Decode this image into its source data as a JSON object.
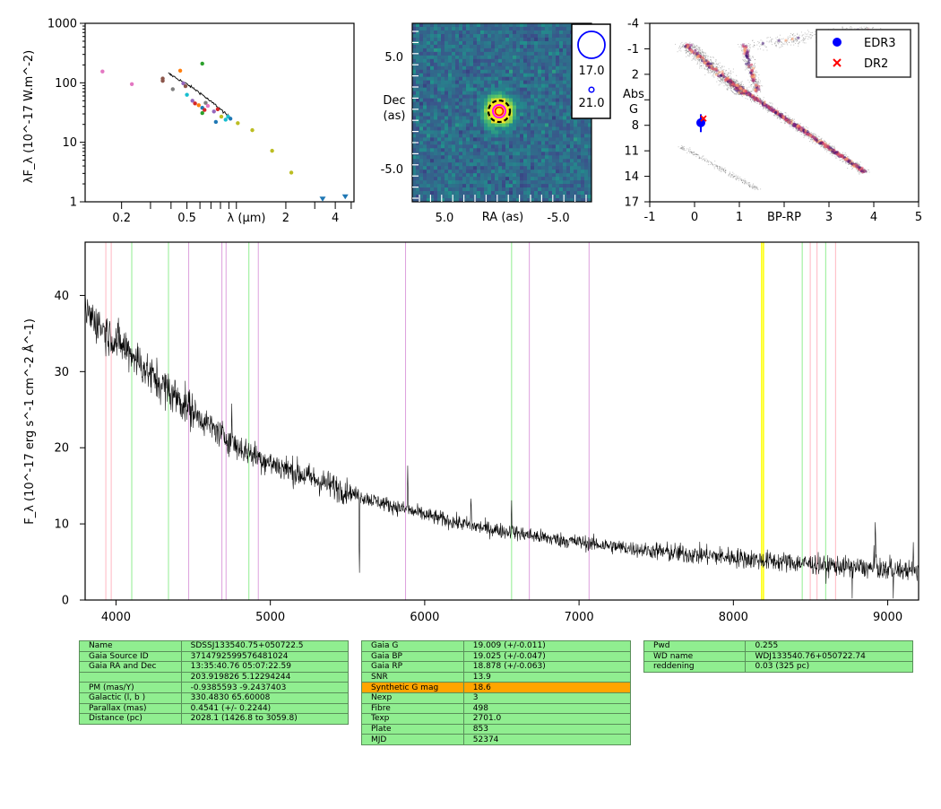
{
  "chart_data": [
    {
      "type": "scatter",
      "panel": "sed",
      "ylabel": "λF_λ (10^-17 W.m^-2)",
      "xlabel": "λ (μm)",
      "xscale": "log",
      "yscale": "log",
      "xlim": [
        0.12,
        5.2
      ],
      "ylim": [
        1,
        1000
      ],
      "x_ticks": [
        "0.2",
        "0.5",
        "2",
        "4"
      ],
      "y_ticks": [
        "1",
        "10",
        "100",
        "1000"
      ],
      "points": [
        {
          "x": 0.153,
          "y": 155,
          "color": "#e377c2"
        },
        {
          "x": 0.231,
          "y": 95,
          "color": "#e377c2"
        },
        {
          "x": 0.356,
          "y": 118,
          "color": "#8c564b"
        },
        {
          "x": 0.356,
          "y": 108,
          "color": "#8c564b"
        },
        {
          "x": 0.41,
          "y": 78,
          "color": "#7f7f7f"
        },
        {
          "x": 0.455,
          "y": 160,
          "color": "#ff7f0e"
        },
        {
          "x": 0.475,
          "y": 98,
          "color": "#9467bd"
        },
        {
          "x": 0.49,
          "y": 88,
          "color": "#8c564b"
        },
        {
          "x": 0.5,
          "y": 63,
          "color": "#17becf"
        },
        {
          "x": 0.54,
          "y": 50,
          "color": "#9467bd"
        },
        {
          "x": 0.56,
          "y": 45,
          "color": "#d62728"
        },
        {
          "x": 0.59,
          "y": 42,
          "color": "#ff7f0e"
        },
        {
          "x": 0.62,
          "y": 210,
          "color": "#2ca02c"
        },
        {
          "x": 0.62,
          "y": 38,
          "color": "#1f77b4"
        },
        {
          "x": 0.62,
          "y": 31,
          "color": "#2ca02c"
        },
        {
          "x": 0.64,
          "y": 35,
          "color": "#d62728"
        },
        {
          "x": 0.65,
          "y": 46,
          "color": "#7f7f7f"
        },
        {
          "x": 0.67,
          "y": 41,
          "color": "#e377c2"
        },
        {
          "x": 0.73,
          "y": 33,
          "color": "#9467bd"
        },
        {
          "x": 0.75,
          "y": 22,
          "color": "#1f77b4"
        },
        {
          "x": 0.77,
          "y": 36,
          "color": "#d62728"
        },
        {
          "x": 0.81,
          "y": 27,
          "color": "#bcbd22"
        },
        {
          "x": 0.86,
          "y": 24,
          "color": "#17becf"
        },
        {
          "x": 0.89,
          "y": 27,
          "color": "#17becf"
        },
        {
          "x": 0.92,
          "y": 25,
          "color": "#1f77b4"
        },
        {
          "x": 1.02,
          "y": 21,
          "color": "#bcbd22"
        },
        {
          "x": 1.25,
          "y": 16,
          "color": "#bcbd22"
        },
        {
          "x": 1.65,
          "y": 7.2,
          "color": "#bcbd22"
        },
        {
          "x": 2.16,
          "y": 3.1,
          "color": "#bcbd22"
        }
      ],
      "upper_limits": [
        {
          "x": 3.35,
          "y": 1.1,
          "color": "#1f77b4"
        },
        {
          "x": 4.6,
          "y": 1.2,
          "color": "#1f77b4"
        }
      ],
      "spectrum_line": [
        [
          0.385,
          145
        ],
        [
          0.41,
          130
        ],
        [
          0.45,
          112
        ],
        [
          0.5,
          95
        ],
        [
          0.55,
          80
        ],
        [
          0.6,
          68
        ],
        [
          0.65,
          57
        ],
        [
          0.7,
          48
        ],
        [
          0.75,
          42
        ],
        [
          0.8,
          36
        ],
        [
          0.85,
          31
        ],
        [
          0.9,
          27
        ],
        [
          0.92,
          26
        ]
      ]
    },
    {
      "type": "heatmap",
      "panel": "image",
      "xlabel": "RA (as)",
      "ylabel": "Dec\n(as)",
      "xlim": [
        10,
        -10
      ],
      "ylim": [
        -10,
        10
      ],
      "x_ticks": [
        "5.0",
        "-5.0"
      ],
      "y_ticks": [
        "5.0",
        "-5.0"
      ],
      "legend": [
        "17.0",
        "21.0"
      ],
      "legend_colors": [
        "#0000ff",
        "#0000ff"
      ]
    },
    {
      "type": "scatter",
      "panel": "hr_diagram",
      "xlabel": "BP-RP",
      "ylabel": "Abs\nG",
      "xlim": [
        -1,
        5
      ],
      "ylim": [
        17,
        -4
      ],
      "x_ticks": [
        "-1",
        "0",
        "1",
        "BP-RP",
        "3",
        "4",
        "5"
      ],
      "y_ticks": [
        "-4",
        "-1",
        "2",
        "",
        "8",
        "11",
        "14",
        "17"
      ],
      "series": [
        {
          "name": "EDR3",
          "color": "#0000ff",
          "marker": "circle",
          "x": 0.14,
          "y": 7.7
        },
        {
          "name": "DR2",
          "color": "#ff0000",
          "marker": "x",
          "x": 0.2,
          "y": 7.2
        }
      ]
    },
    {
      "type": "line",
      "panel": "spectrum",
      "ylabel": "F_λ (10^-17 erg s^-1 cm^-2 Å^-1)",
      "xlim": [
        3800,
        9200
      ],
      "ylim": [
        0,
        47
      ],
      "x_ticks": [
        "4000",
        "5000",
        "6000",
        "7000",
        "8000",
        "9000"
      ],
      "y_ticks": [
        "0",
        "10",
        "20",
        "30",
        "40"
      ],
      "continuum": [
        [
          3800,
          38
        ],
        [
          3900,
          36
        ],
        [
          4000,
          34
        ],
        [
          4100,
          32.5
        ],
        [
          4200,
          30
        ],
        [
          4400,
          26.5
        ],
        [
          4600,
          23
        ],
        [
          4800,
          20
        ],
        [
          5000,
          18
        ],
        [
          5200,
          16.5
        ],
        [
          5400,
          15
        ],
        [
          5600,
          13.5
        ],
        [
          5800,
          12.3
        ],
        [
          6000,
          11.2
        ],
        [
          6200,
          10.2
        ],
        [
          6400,
          9.4
        ],
        [
          6600,
          8.8
        ],
        [
          6800,
          8.1
        ],
        [
          7000,
          7.6
        ],
        [
          7200,
          7.1
        ],
        [
          7400,
          6.6
        ],
        [
          7600,
          6.2
        ],
        [
          7800,
          5.9
        ],
        [
          8000,
          5.6
        ],
        [
          8200,
          5.2
        ],
        [
          8400,
          4.9
        ],
        [
          8600,
          4.6
        ],
        [
          8800,
          4.3
        ],
        [
          9000,
          4.0
        ],
        [
          9200,
          3.8
        ]
      ],
      "features": [
        {
          "x": 5577,
          "dy": -11
        },
        {
          "x": 5890,
          "dy": 6
        },
        {
          "x": 6300,
          "dy": 4
        },
        {
          "x": 6563,
          "dy": 5
        },
        {
          "x": 8920,
          "dy": 8
        },
        {
          "x": 4750,
          "dy": 5
        }
      ],
      "vlines": [
        {
          "x": 3934,
          "color": "#ffb6c1"
        },
        {
          "x": 3969,
          "color": "#ffb6c1"
        },
        {
          "x": 4102,
          "color": "#90ee90"
        },
        {
          "x": 4340,
          "color": "#90ee90"
        },
        {
          "x": 4471,
          "color": "#dda0dd"
        },
        {
          "x": 4686,
          "color": "#dda0dd"
        },
        {
          "x": 4713,
          "color": "#dda0dd"
        },
        {
          "x": 4861,
          "color": "#90ee90"
        },
        {
          "x": 4922,
          "color": "#dda0dd"
        },
        {
          "x": 5876,
          "color": "#dda0dd"
        },
        {
          "x": 6563,
          "color": "#90ee90"
        },
        {
          "x": 6678,
          "color": "#dda0dd"
        },
        {
          "x": 7065,
          "color": "#dda0dd"
        },
        {
          "x": 8183,
          "color": "#ffff00"
        },
        {
          "x": 8195,
          "color": "#ffff00"
        },
        {
          "x": 8446,
          "color": "#90ee90"
        },
        {
          "x": 8498,
          "color": "#ffb6c1"
        },
        {
          "x": 8542,
          "color": "#ffb6c1"
        },
        {
          "x": 8598,
          "color": "#90ee90"
        },
        {
          "x": 8662,
          "color": "#ffb6c1"
        }
      ]
    }
  ],
  "tables": {
    "t1": [
      [
        "Name",
        "SDSSJ133540.75+050722.5"
      ],
      [
        "Gaia Source ID",
        "3714792599576481024"
      ],
      [
        "Gaia RA and Dec",
        "13:35:40.76     05:07:22.59"
      ],
      [
        "",
        "203.919826    5.12294244"
      ],
      [
        "PM (mas/Y)",
        "-0.9385593    -9.2437403"
      ],
      [
        "Galactic (l, b )",
        "330.4830    65.60008"
      ],
      [
        "Parallax (mas)",
        "0.4541 (+/- 0.2244)"
      ],
      [
        "Distance (pc)",
        "2028.1 (1426.8 to 3059.8)"
      ]
    ],
    "t2": [
      [
        "Gaia G",
        "19.009 (+/-0.011)"
      ],
      [
        "Gaia BP",
        "19.025 (+/-0.047)"
      ],
      [
        "Gaia RP",
        "18.878 (+/-0.063)"
      ],
      [
        "SNR",
        "13.9"
      ],
      [
        "Synthetic G mag",
        "18.6"
      ],
      [
        "Nexp",
        "3"
      ],
      [
        "Fibre",
        "498"
      ],
      [
        "Texp",
        "2701.0"
      ],
      [
        "Plate",
        "853"
      ],
      [
        "MJD",
        "52374"
      ]
    ],
    "t3": [
      [
        "Pwd",
        "0.255"
      ],
      [
        "WD name",
        "WDJ133540.76+050722.74"
      ],
      [
        "reddening",
        "0.03 (325 pc)"
      ]
    ],
    "highlight_color": "#ffa500"
  }
}
